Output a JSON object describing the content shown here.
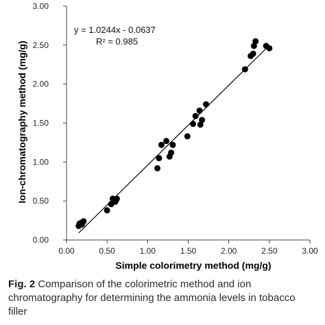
{
  "chart_data": {
    "type": "scatter",
    "xlabel": "Simple colorimetry method (mg/g)",
    "ylabel": "Ion-chromatography method  (mg/g)",
    "xlim": [
      0,
      3
    ],
    "ylim": [
      0,
      3
    ],
    "xticks": [
      "0.00",
      "0.50",
      "1.00",
      "1.50",
      "2.00",
      "2.50",
      "3.00"
    ],
    "yticks": [
      "0.00",
      "0.50",
      "1.00",
      "1.50",
      "2.00",
      "2.50",
      "3.00"
    ],
    "grid": false,
    "equation": "y = 1.0244x - 0.0637",
    "r_squared": "R² = 0.985",
    "trendline": {
      "slope": 1.0244,
      "intercept": -0.0637,
      "x_range": [
        0.15,
        2.5
      ]
    },
    "points": [
      {
        "x": 0.15,
        "y": 0.18
      },
      {
        "x": 0.16,
        "y": 0.21
      },
      {
        "x": 0.18,
        "y": 0.22
      },
      {
        "x": 0.19,
        "y": 0.2
      },
      {
        "x": 0.21,
        "y": 0.24
      },
      {
        "x": 0.5,
        "y": 0.38
      },
      {
        "x": 0.55,
        "y": 0.46
      },
      {
        "x": 0.57,
        "y": 0.53
      },
      {
        "x": 0.6,
        "y": 0.49
      },
      {
        "x": 0.61,
        "y": 0.51
      },
      {
        "x": 0.62,
        "y": 0.53
      },
      {
        "x": 1.12,
        "y": 0.92
      },
      {
        "x": 1.14,
        "y": 1.05
      },
      {
        "x": 1.17,
        "y": 1.22
      },
      {
        "x": 1.23,
        "y": 1.27
      },
      {
        "x": 1.27,
        "y": 1.07
      },
      {
        "x": 1.29,
        "y": 1.12
      },
      {
        "x": 1.31,
        "y": 1.22
      },
      {
        "x": 1.49,
        "y": 1.33
      },
      {
        "x": 1.56,
        "y": 1.49
      },
      {
        "x": 1.59,
        "y": 1.59
      },
      {
        "x": 1.64,
        "y": 1.66
      },
      {
        "x": 1.65,
        "y": 1.48
      },
      {
        "x": 1.67,
        "y": 1.54
      },
      {
        "x": 1.72,
        "y": 1.74
      },
      {
        "x": 2.2,
        "y": 2.19
      },
      {
        "x": 2.27,
        "y": 2.36
      },
      {
        "x": 2.3,
        "y": 2.39
      },
      {
        "x": 2.31,
        "y": 2.49
      },
      {
        "x": 2.33,
        "y": 2.55
      },
      {
        "x": 2.46,
        "y": 2.49
      },
      {
        "x": 2.5,
        "y": 2.46
      }
    ]
  },
  "caption": {
    "label": "Fig. 2",
    "text": " Comparison of the colorimetric method and ion chromatography for determining the ammonia levels in tobacco filler"
  }
}
